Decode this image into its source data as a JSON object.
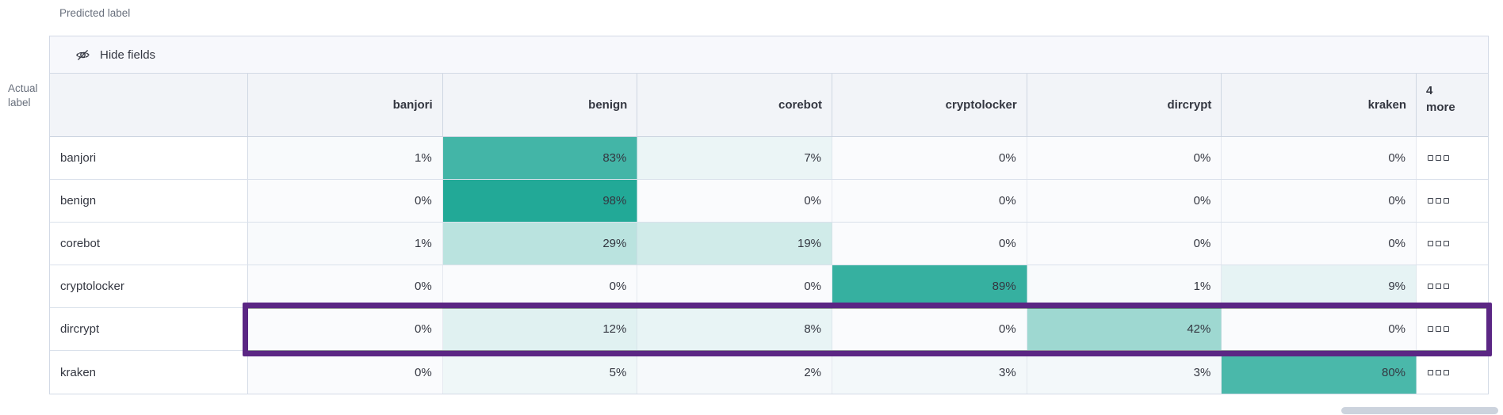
{
  "axes": {
    "predicted_label": "Predicted label",
    "actual_label_line1": "Actual",
    "actual_label_line2": "label"
  },
  "toolbar": {
    "hide_fields_label": "Hide fields",
    "icon": "eye-closed-icon"
  },
  "row_actions_icon": "boxes-horizontal-icon",
  "chart_data": {
    "type": "heatmap",
    "x_axis_label": "Predicted label",
    "y_axis_label": "Actual label",
    "columns": [
      "banjori",
      "benign",
      "corebot",
      "cryptolocker",
      "dircrypt",
      "kraken"
    ],
    "columns_overflow_label": "4 more",
    "unit": "%",
    "value_range": [
      0,
      100
    ],
    "rows": [
      {
        "label": "banjori",
        "values": [
          1,
          83,
          7,
          0,
          0,
          0
        ],
        "highlighted": false
      },
      {
        "label": "benign",
        "values": [
          0,
          98,
          0,
          0,
          0,
          0
        ],
        "highlighted": false
      },
      {
        "label": "corebot",
        "values": [
          1,
          29,
          19,
          0,
          0,
          0
        ],
        "highlighted": false
      },
      {
        "label": "cryptolocker",
        "values": [
          0,
          0,
          0,
          89,
          1,
          9
        ],
        "highlighted": false
      },
      {
        "label": "dircrypt",
        "values": [
          0,
          12,
          8,
          0,
          42,
          0
        ],
        "highlighted": true
      },
      {
        "label": "kraken",
        "values": [
          0,
          5,
          2,
          3,
          3,
          80
        ],
        "highlighted": false
      }
    ],
    "colors": {
      "heat_low": "#fafbfd",
      "heat_high": "#1ea795",
      "highlight_border": "#5b2684",
      "header_bg": "#f2f4f8",
      "toolbar_bg": "#f7f8fc",
      "panel_border": "#d3dae6"
    }
  }
}
